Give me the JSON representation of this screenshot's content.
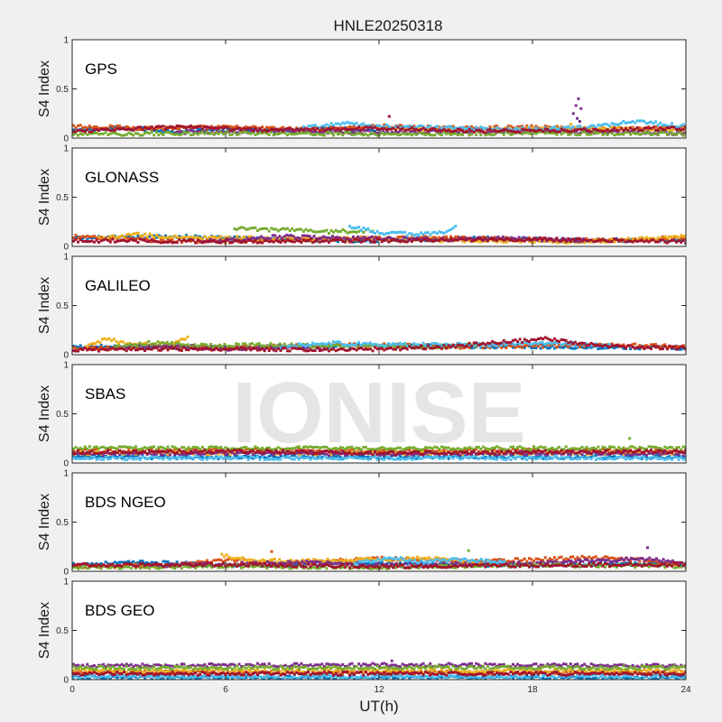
{
  "watermark": "IONISE",
  "chart_data": {
    "type": "scatter",
    "title": "HNLE20250318",
    "xlabel": "UT(h)",
    "ylabel": "S4 Index",
    "xlim": [
      0,
      24
    ],
    "ylim": [
      0,
      1
    ],
    "x_ticks": [
      "0",
      "6",
      "12",
      "18",
      "24"
    ],
    "y_ticks": [
      "0",
      "0.5",
      "1"
    ],
    "grid": false,
    "series_colors": [
      "#0072BD",
      "#D95319",
      "#EDB120",
      "#7E2F8E",
      "#77AC30",
      "#4DBEEE",
      "#A2142F"
    ],
    "panels": [
      {
        "label": "GPS",
        "traces": [
          {
            "c": 0,
            "x": [
              0,
              2,
              4,
              6,
              8,
              10,
              12
            ],
            "y": [
              0.08,
              0.1,
              0.07,
              0.09,
              0.08,
              0.1,
              0.08
            ]
          },
          {
            "c": 1,
            "x": [
              0,
              3,
              6,
              9,
              12,
              15,
              18,
              21,
              24
            ],
            "y": [
              0.12,
              0.1,
              0.11,
              0.09,
              0.12,
              0.1,
              0.11,
              0.09,
              0.12
            ]
          },
          {
            "c": 2,
            "x": [
              12,
              15,
              18,
              21,
              24
            ],
            "y": [
              0.1,
              0.08,
              0.09,
              0.1,
              0.08
            ]
          },
          {
            "c": 3,
            "x": [
              4,
              8,
              12,
              16,
              20,
              24
            ],
            "y": [
              0.06,
              0.07,
              0.06,
              0.07,
              0.06,
              0.05
            ]
          },
          {
            "c": 4,
            "x": [
              0,
              6,
              12,
              18,
              24
            ],
            "y": [
              0.04,
              0.05,
              0.04,
              0.05,
              0.04
            ]
          },
          {
            "c": 5,
            "x": [
              9,
              10.5,
              12,
              15,
              18,
              20,
              22,
              24
            ],
            "y": [
              0.1,
              0.15,
              0.12,
              0.1,
              0.09,
              0.11,
              0.17,
              0.12
            ]
          },
          {
            "c": 6,
            "x": [
              0,
              4,
              8,
              12,
              16,
              20,
              24
            ],
            "y": [
              0.07,
              0.11,
              0.08,
              0.1,
              0.07,
              0.08,
              0.1
            ]
          }
        ],
        "points": [
          {
            "c": 3,
            "x": 19.8,
            "y": 0.4
          },
          {
            "c": 3,
            "x": 19.7,
            "y": 0.33
          },
          {
            "c": 3,
            "x": 19.9,
            "y": 0.3
          },
          {
            "c": 3,
            "x": 19.6,
            "y": 0.25
          },
          {
            "c": 3,
            "x": 19.75,
            "y": 0.2
          },
          {
            "c": 3,
            "x": 19.85,
            "y": 0.17
          },
          {
            "c": 6,
            "x": 12.4,
            "y": 0.22
          },
          {
            "c": 2,
            "x": 19.5,
            "y": 0.14
          }
        ]
      },
      {
        "label": "GLONASS",
        "traces": [
          {
            "c": 0,
            "x": [
              0,
              4,
              8,
              12,
              16,
              20,
              24
            ],
            "y": [
              0.08,
              0.1,
              0.07,
              0.06,
              0.08,
              0.06,
              0.07
            ]
          },
          {
            "c": 1,
            "x": [
              0,
              3,
              6,
              9,
              12,
              15,
              18,
              21,
              24
            ],
            "y": [
              0.1,
              0.06,
              0.05,
              0.07,
              0.08,
              0.09,
              0.07,
              0.06,
              0.09
            ]
          },
          {
            "c": 2,
            "x": [
              1,
              2.5,
              4,
              20,
              22,
              24
            ],
            "y": [
              0.08,
              0.12,
              0.09,
              0.05,
              0.07,
              0.1
            ]
          },
          {
            "c": 3,
            "x": [
              5,
              6.5,
              8,
              14,
              17,
              20
            ],
            "y": [
              0.05,
              0.07,
              0.1,
              0.07,
              0.08,
              0.06
            ]
          },
          {
            "c": 4,
            "x": [
              6.3,
              8,
              10,
              11.7
            ],
            "y": [
              0.18,
              0.17,
              0.15,
              0.16
            ]
          },
          {
            "c": 5,
            "x": [
              10.8,
              12,
              13.5,
              14.5,
              15
            ],
            "y": [
              0.2,
              0.14,
              0.12,
              0.15,
              0.2
            ]
          },
          {
            "c": 6,
            "x": [
              0,
              6,
              12,
              18,
              24
            ],
            "y": [
              0.06,
              0.05,
              0.06,
              0.07,
              0.05
            ]
          }
        ],
        "points": []
      },
      {
        "label": "GALILEO",
        "traces": [
          {
            "c": 0,
            "x": [
              0,
              6,
              12,
              18,
              24
            ],
            "y": [
              0.08,
              0.07,
              0.09,
              0.08,
              0.07
            ]
          },
          {
            "c": 1,
            "x": [
              0,
              3,
              6,
              9,
              12,
              15,
              18,
              21,
              24
            ],
            "y": [
              0.06,
              0.08,
              0.07,
              0.09,
              0.1,
              0.08,
              0.09,
              0.1,
              0.08
            ]
          },
          {
            "c": 2,
            "x": [
              0.5,
              1.2,
              2.5,
              4,
              4.5
            ],
            "y": [
              0.08,
              0.16,
              0.1,
              0.12,
              0.18
            ]
          },
          {
            "c": 3,
            "x": [
              2,
              4,
              6,
              8,
              10
            ],
            "y": [
              0.08,
              0.09,
              0.06,
              0.08,
              0.07
            ]
          },
          {
            "c": 4,
            "x": [
              1.5,
              3,
              5.5,
              7,
              14,
              16
            ],
            "y": [
              0.07,
              0.12,
              0.09,
              0.1,
              0.08,
              0.1
            ]
          },
          {
            "c": 5,
            "x": [
              8,
              10,
              12,
              16.5,
              18.5,
              21
            ],
            "y": [
              0.08,
              0.12,
              0.1,
              0.1,
              0.12,
              0.09
            ]
          },
          {
            "c": 6,
            "x": [
              0,
              5,
              11,
              14.5,
              18.5,
              21,
              24
            ],
            "y": [
              0.05,
              0.06,
              0.05,
              0.08,
              0.16,
              0.08,
              0.07
            ]
          }
        ],
        "points": []
      },
      {
        "label": "SBAS",
        "traces": [
          {
            "c": 0,
            "x": [
              0,
              24
            ],
            "y": [
              0.06,
              0.06
            ]
          },
          {
            "c": 1,
            "x": [
              0,
              6,
              12,
              18,
              24
            ],
            "y": [
              0.12,
              0.13,
              0.12,
              0.13,
              0.12
            ]
          },
          {
            "c": 2,
            "x": [
              0,
              24
            ],
            "y": [
              0.1,
              0.1
            ]
          },
          {
            "c": 3,
            "x": [
              0,
              6,
              12,
              18,
              24
            ],
            "y": [
              0.09,
              0.1,
              0.09,
              0.1,
              0.09
            ]
          },
          {
            "c": 4,
            "x": [
              0,
              24
            ],
            "y": [
              0.15,
              0.15
            ]
          },
          {
            "c": 5,
            "x": [
              0,
              24
            ],
            "y": [
              0.05,
              0.05
            ]
          },
          {
            "c": 6,
            "x": [
              0,
              6,
              12,
              18,
              24
            ],
            "y": [
              0.11,
              0.12,
              0.1,
              0.11,
              0.12
            ]
          }
        ],
        "points": [
          {
            "c": 4,
            "x": 21.8,
            "y": 0.25
          }
        ]
      },
      {
        "label": "BDS NGEO",
        "traces": [
          {
            "c": 0,
            "x": [
              0,
              3,
              6,
              9,
              12,
              15,
              18,
              21,
              24
            ],
            "y": [
              0.07,
              0.09,
              0.06,
              0.07,
              0.08,
              0.07,
              0.06,
              0.08,
              0.07
            ]
          },
          {
            "c": 1,
            "x": [
              0,
              4,
              6,
              8,
              12,
              16,
              20,
              22,
              24
            ],
            "y": [
              0.05,
              0.06,
              0.12,
              0.08,
              0.13,
              0.1,
              0.14,
              0.12,
              0.07
            ]
          },
          {
            "c": 2,
            "x": [
              5.8,
              7,
              8.5,
              12,
              14,
              16
            ],
            "y": [
              0.16,
              0.12,
              0.1,
              0.12,
              0.13,
              0.08
            ]
          },
          {
            "c": 3,
            "x": [
              3,
              6,
              9,
              12,
              15,
              18,
              22.5,
              24
            ],
            "y": [
              0.06,
              0.07,
              0.09,
              0.06,
              0.07,
              0.08,
              0.13,
              0.07
            ]
          },
          {
            "c": 4,
            "x": [
              0,
              6,
              12,
              18,
              24
            ],
            "y": [
              0.04,
              0.05,
              0.04,
              0.06,
              0.05
            ]
          },
          {
            "c": 5,
            "x": [
              11,
              12.5,
              13.5,
              15,
              17
            ],
            "y": [
              0.08,
              0.14,
              0.1,
              0.12,
              0.09
            ]
          },
          {
            "c": 6,
            "x": [
              0,
              6,
              12,
              18,
              24
            ],
            "y": [
              0.06,
              0.07,
              0.05,
              0.06,
              0.07
            ]
          }
        ],
        "points": [
          {
            "c": 3,
            "x": 22.5,
            "y": 0.24
          },
          {
            "c": 4,
            "x": 15.5,
            "y": 0.21
          },
          {
            "c": 1,
            "x": 7.8,
            "y": 0.2
          }
        ]
      },
      {
        "label": "BDS GEO",
        "traces": [
          {
            "c": 0,
            "x": [
              0,
              24
            ],
            "y": [
              0.02,
              0.02
            ]
          },
          {
            "c": 1,
            "x": [
              0,
              24
            ],
            "y": [
              0.07,
              0.07
            ]
          },
          {
            "c": 2,
            "x": [
              0,
              24
            ],
            "y": [
              0.09,
              0.09
            ]
          },
          {
            "c": 3,
            "x": [
              0,
              12,
              24
            ],
            "y": [
              0.14,
              0.15,
              0.14
            ]
          },
          {
            "c": 4,
            "x": [
              0,
              24
            ],
            "y": [
              0.12,
              0.12
            ]
          },
          {
            "c": 5,
            "x": [
              0,
              24
            ],
            "y": [
              0.03,
              0.03
            ]
          },
          {
            "c": 6,
            "x": [
              0,
              24
            ],
            "y": [
              0.06,
              0.06
            ]
          }
        ],
        "points": [
          {
            "c": 3,
            "x": 12.5,
            "y": 0.19
          }
        ]
      }
    ]
  }
}
